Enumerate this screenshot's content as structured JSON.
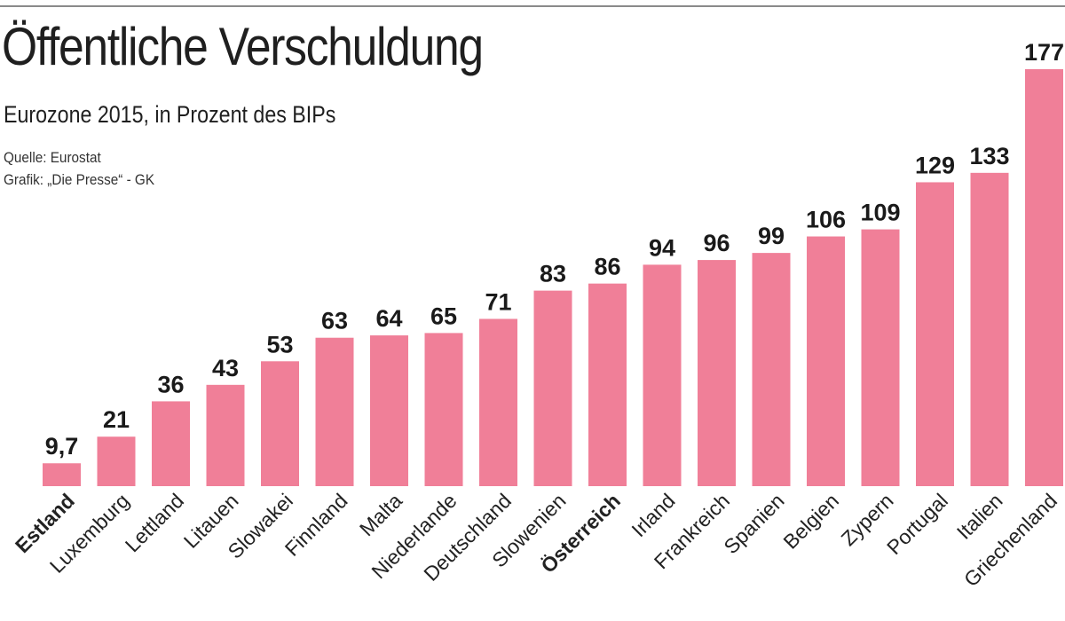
{
  "header": {
    "title": "Öffentliche Verschuldung",
    "subtitle": "Eurozone 2015, in Prozent des BIPs",
    "source": "Quelle: Eurostat",
    "credit": "Grafik: „Die Presse“ - GK"
  },
  "chart_data": {
    "type": "bar",
    "title": "Öffentliche Verschuldung",
    "subtitle": "Eurozone 2015, in Prozent des BIPs",
    "categories": [
      "Estland",
      "Luxemburg",
      "Lettland",
      "Litauen",
      "Slowakei",
      "Finnland",
      "Malta",
      "Niederlande",
      "Deutschland",
      "Slowenien",
      "Österreich",
      "Irland",
      "Frankreich",
      "Spanien",
      "Belgien",
      "Zypern",
      "Portugal",
      "Italien",
      "Griechenland"
    ],
    "values": [
      9.7,
      21,
      36,
      43,
      53,
      63,
      64,
      65,
      71,
      83,
      86,
      94,
      96,
      99,
      106,
      109,
      129,
      133,
      177
    ],
    "value_labels": [
      "9,7",
      "21",
      "36",
      "43",
      "53",
      "63",
      "64",
      "65",
      "71",
      "83",
      "86",
      "94",
      "96",
      "99",
      "106",
      "109",
      "129",
      "133",
      "177"
    ],
    "highlighted_categories": [
      "Estland",
      "Österreich"
    ],
    "bar_color": "#f07f98",
    "xlabel": "",
    "ylabel": "",
    "ylim": [
      0,
      177
    ],
    "grid": false,
    "legend": "none"
  }
}
